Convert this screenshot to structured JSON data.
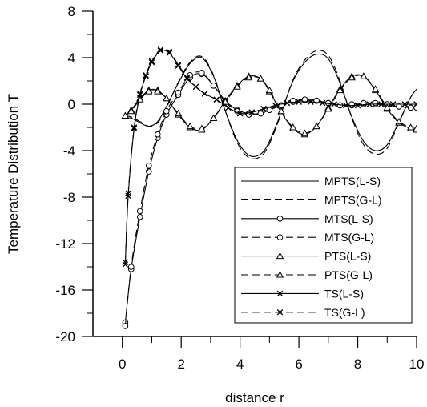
{
  "chart_data": {
    "type": "line",
    "title": "",
    "xlabel": "distance r",
    "ylabel": "Temperature Distribution T",
    "xlim": [
      -1,
      10
    ],
    "ylim": [
      -20,
      8
    ],
    "xticks": [
      0,
      2,
      4,
      6,
      8,
      10
    ],
    "xtick_labels": [
      "0",
      "2",
      "4",
      "6",
      "8",
      "10"
    ],
    "yticks": [
      -20,
      -16,
      -12,
      -8,
      -4,
      0,
      4,
      8
    ],
    "ytick_labels": [
      "-20",
      "-16",
      "-12",
      "-8",
      "-4",
      "0",
      "4",
      "8"
    ],
    "grid": false,
    "legend_position": "bottom-right",
    "line_color": "#000000",
    "series": [
      {
        "name": "MPTS(L-S)",
        "style": "solid",
        "marker": "none",
        "x": [
          0.1,
          0.3,
          0.6,
          0.9,
          1.2,
          1.5,
          1.9,
          2.3,
          2.7,
          3.1,
          3.5,
          3.9,
          4.3,
          4.7,
          5.0,
          5.4,
          5.8,
          6.2,
          6.6,
          7.0,
          7.4,
          7.8,
          8.2,
          8.6,
          9.0,
          9.4,
          9.8,
          10.0
        ],
        "y": [
          -1.2,
          -1.2,
          -1.6,
          -1.9,
          -1.5,
          -0.2,
          1.8,
          3.5,
          4.0,
          2.4,
          -0.6,
          -3.1,
          -4.4,
          -4.3,
          -3.2,
          -0.7,
          2.0,
          3.6,
          4.3,
          3.9,
          1.8,
          -1.1,
          -3.2,
          -4.0,
          -3.5,
          -1.5,
          0.6,
          1.3
        ]
      },
      {
        "name": "MPTS(G-L)",
        "style": "dashed",
        "marker": "none",
        "x": [
          0.1,
          0.3,
          0.6,
          0.9,
          1.2,
          1.5,
          1.9,
          2.3,
          2.7,
          3.1,
          3.5,
          3.9,
          4.3,
          4.7,
          5.0,
          5.4,
          5.8,
          6.2,
          6.6,
          7.0,
          7.4,
          7.8,
          8.2,
          8.6,
          9.0,
          9.4,
          9.8,
          10.0
        ],
        "y": [
          -1.0,
          -1.1,
          -1.5,
          -1.9,
          -1.6,
          -0.3,
          1.9,
          3.6,
          4.1,
          2.5,
          -0.6,
          -3.3,
          -4.6,
          -4.5,
          -3.4,
          -0.8,
          2.1,
          3.8,
          4.6,
          4.2,
          2.0,
          -1.2,
          -3.5,
          -4.3,
          -3.8,
          -1.6,
          0.6,
          1.2
        ]
      },
      {
        "name": "MTS(L-S)",
        "style": "solid",
        "marker": "circle",
        "x": [
          0.1,
          0.3,
          0.6,
          0.9,
          1.2,
          1.5,
          1.9,
          2.3,
          2.7,
          3.1,
          3.5,
          3.9,
          4.3,
          4.7,
          5.0,
          5.4,
          5.8,
          6.2,
          6.6,
          7.0,
          7.4,
          7.8,
          8.2,
          8.6,
          9.0,
          9.4,
          9.8,
          10.0
        ],
        "y": [
          -18.8,
          -14.2,
          -9.7,
          -5.8,
          -2.9,
          -0.9,
          0.8,
          2.3,
          2.6,
          1.6,
          0.3,
          -0.5,
          -0.8,
          -0.8,
          -0.5,
          -0.1,
          0.2,
          0.35,
          0.3,
          0.1,
          -0.1,
          -0.1,
          0.0,
          0.0,
          -0.1,
          -0.2,
          -0.3,
          -0.3
        ]
      },
      {
        "name": "MTS(G-L)",
        "style": "dashed",
        "marker": "circle",
        "x": [
          0.1,
          0.3,
          0.6,
          0.9,
          1.2,
          1.5,
          1.9,
          2.3,
          2.7,
          3.1,
          3.5,
          3.9,
          4.3,
          4.7,
          5.0,
          5.4,
          5.8,
          6.2,
          6.6,
          7.0,
          7.4,
          7.8,
          8.2,
          8.6,
          9.0,
          9.4,
          9.8,
          10.0
        ],
        "y": [
          -19.1,
          -14.0,
          -9.2,
          -5.3,
          -2.6,
          -0.6,
          1.0,
          2.5,
          2.7,
          1.6,
          0.2,
          -0.6,
          -0.9,
          -0.8,
          -0.5,
          -0.1,
          0.3,
          0.4,
          0.3,
          0.1,
          -0.1,
          0.0,
          0.1,
          0.1,
          0.0,
          -0.2,
          -0.3,
          -0.3
        ]
      },
      {
        "name": "PTS(L-S)",
        "style": "solid",
        "marker": "triangle",
        "x": [
          0.1,
          0.3,
          0.6,
          0.9,
          1.2,
          1.5,
          1.9,
          2.3,
          2.7,
          3.1,
          3.5,
          3.9,
          4.3,
          4.7,
          5.0,
          5.4,
          5.8,
          6.2,
          6.6,
          7.0,
          7.4,
          7.8,
          8.2,
          8.6,
          9.0,
          9.4,
          9.8,
          10.0
        ],
        "y": [
          -1.0,
          -0.5,
          0.5,
          1.2,
          1.2,
          0.5,
          -0.9,
          -2.0,
          -2.2,
          -1.2,
          0.3,
          1.6,
          2.4,
          2.2,
          1.1,
          -0.7,
          -2.1,
          -2.6,
          -1.9,
          -0.3,
          1.3,
          2.4,
          2.4,
          1.2,
          -0.4,
          -1.6,
          -2.1,
          -2.2
        ]
      },
      {
        "name": "PTS(G-L)",
        "style": "dashed",
        "marker": "triangle",
        "x": [
          0.1,
          0.3,
          0.6,
          0.9,
          1.2,
          1.5,
          1.9,
          2.3,
          2.7,
          3.1,
          3.5,
          3.9,
          4.3,
          4.7,
          5.0,
          5.4,
          5.8,
          6.2,
          6.6,
          7.0,
          7.4,
          7.8,
          8.2,
          8.6,
          9.0,
          9.4,
          9.8,
          10.0
        ],
        "y": [
          -1.0,
          -0.6,
          0.4,
          1.1,
          1.1,
          0.5,
          -0.8,
          -1.9,
          -2.1,
          -1.2,
          0.2,
          1.5,
          2.3,
          2.2,
          1.2,
          -0.6,
          -2.0,
          -2.5,
          -1.9,
          -0.4,
          1.2,
          2.3,
          2.4,
          1.3,
          -0.3,
          -1.5,
          -2.0,
          -2.1
        ]
      },
      {
        "name": "TS(L-S)",
        "style": "solid",
        "marker": "x",
        "x": [
          0.1,
          0.2,
          0.4,
          0.6,
          0.8,
          1.0,
          1.3,
          1.6,
          1.9,
          2.2,
          2.5,
          2.8,
          3.2,
          3.6,
          4.0,
          4.4,
          4.8,
          5.2,
          5.6,
          6.0,
          6.4,
          6.8,
          7.2,
          7.6,
          8.0,
          8.4,
          8.8,
          9.2,
          9.6,
          10.0
        ],
        "y": [
          -13.8,
          -7.9,
          -2.1,
          0.8,
          2.4,
          3.6,
          4.6,
          4.4,
          3.3,
          2.2,
          1.5,
          0.9,
          0.4,
          -0.3,
          -0.8,
          -0.7,
          -0.4,
          -0.1,
          0.1,
          0.2,
          0.2,
          0.1,
          0.0,
          -0.1,
          -0.1,
          0.0,
          0.0,
          0.0,
          0.0,
          0.0
        ]
      },
      {
        "name": "TS(G-L)",
        "style": "dashed",
        "marker": "x",
        "x": [
          0.1,
          0.2,
          0.4,
          0.6,
          0.8,
          1.0,
          1.3,
          1.6,
          1.9,
          2.2,
          2.5,
          2.8,
          3.2,
          3.6,
          4.0,
          4.4,
          4.8,
          5.2,
          5.6,
          6.0,
          6.4,
          6.8,
          7.2,
          7.6,
          8.0,
          8.4,
          8.8,
          9.2,
          9.6,
          10.0
        ],
        "y": [
          -13.6,
          -7.7,
          -2.0,
          0.9,
          2.5,
          3.7,
          4.7,
          4.5,
          3.4,
          2.3,
          1.5,
          0.9,
          0.4,
          -0.3,
          -0.8,
          -0.7,
          -0.4,
          -0.1,
          0.1,
          0.2,
          0.2,
          0.1,
          0.0,
          -0.1,
          -0.1,
          0.0,
          0.0,
          0.0,
          0.0,
          0.0
        ]
      }
    ]
  }
}
